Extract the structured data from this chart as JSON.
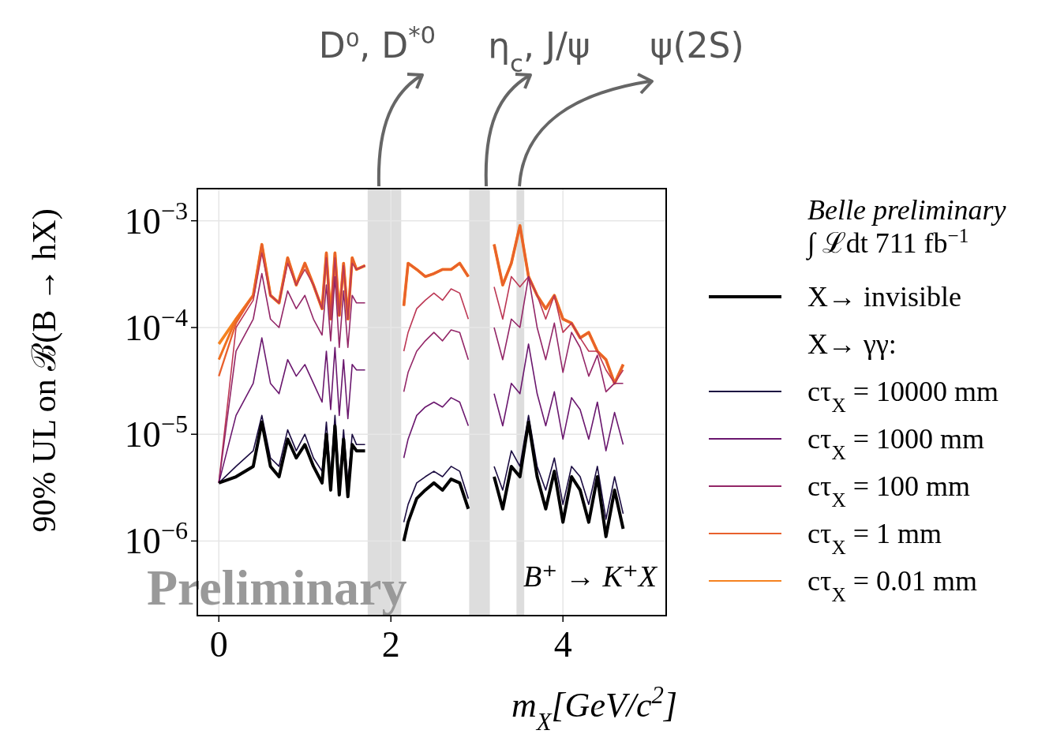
{
  "chart_data": {
    "type": "line",
    "xlabel": "m$_{X}$[GeV/c$^{2}$]",
    "ylabel": "90% UL on ℬ(B → hX)",
    "legend_title": "Belle preliminary",
    "legend": "right",
    "grid": true,
    "log": "y",
    "line_style": "solid",
    "marker": "none",
    "xlim": [
      -0.25,
      5.2
    ],
    "xticks": [
      0,
      2,
      4
    ],
    "ylim": [
      2e-07,
      0.002
    ],
    "yticks": [
      {
        "value": 1e-06,
        "label": "10$^{−6}$"
      },
      {
        "value": 1e-05,
        "label": "10$^{−5}$"
      },
      {
        "value": 0.0001,
        "label": "10$^{−4}$"
      },
      {
        "value": 0.001,
        "label": "10$^{−3}$"
      }
    ],
    "x": [
      0,
      0.2,
      0.4,
      0.5,
      0.6,
      0.7,
      0.8,
      0.9,
      1.0,
      1.1,
      1.2,
      1.25,
      1.3,
      1.35,
      1.4,
      1.45,
      1.5,
      1.55,
      1.6,
      1.7,
      1.9,
      2.15,
      2.2,
      2.3,
      2.4,
      2.5,
      2.6,
      2.7,
      2.8,
      2.9,
      3.05,
      3.2,
      3.3,
      3.4,
      3.5,
      3.6,
      3.7,
      3.8,
      3.9,
      4.0,
      4.1,
      4.2,
      4.3,
      4.4,
      4.5,
      4.6,
      4.7
    ],
    "bands": [
      {
        "axis": "x",
        "from": 1.73,
        "to": 2.12,
        "label": "D⁰, D$^{*0}$",
        "color": "#dddddd"
      },
      {
        "axis": "x",
        "from": 2.91,
        "to": 3.15,
        "label": "η$_{c}$, J/ψ",
        "color": "#dddddd"
      },
      {
        "axis": "x",
        "from": 3.46,
        "to": 3.55,
        "label": "ψ(2S)",
        "color": "#dddddd"
      }
    ],
    "annotations": [
      "∫ ℒdt 711 fb$^{−1}$",
      "X→ γγ:",
      "Preliminary",
      "B⁺ → K⁺X"
    ],
    "series": [
      {
        "name": "X→ invisible",
        "color": "#000000",
        "values": [
          3.5e-06,
          4e-06,
          5e-06,
          1.3e-05,
          5e-06,
          4e-06,
          9e-06,
          6e-06,
          8e-06,
          5e-06,
          3.5e-06,
          1e-05,
          3e-06,
          1.2e-05,
          2.7e-06,
          9e-06,
          2.6e-06,
          8e-06,
          7e-06,
          7e-06,
          null,
          1e-06,
          1.5e-06,
          2.5e-06,
          3e-06,
          3.5e-06,
          3e-06,
          3.8e-06,
          3.5e-06,
          2e-06,
          null,
          4e-06,
          2e-06,
          5e-06,
          4e-06,
          1.3e-05,
          4e-06,
          2e-06,
          4.5e-06,
          1.5e-06,
          4e-06,
          3e-06,
          1.5e-06,
          4e-06,
          1.1e-06,
          3e-06,
          1.3e-06
        ]
      },
      {
        "name": "cτ$_{X}$ = 10000 mm",
        "color": "#1b0c41",
        "values": [
          3.5e-06,
          5e-06,
          7e-06,
          1.5e-05,
          6e-06,
          5e-06,
          1.1e-05,
          7e-06,
          1e-05,
          6e-06,
          4.5e-06,
          1.3e-05,
          4e-06,
          1.5e-05,
          3.5e-06,
          1.1e-05,
          3.5e-06,
          1e-05,
          8e-06,
          8e-06,
          null,
          1.5e-06,
          2.2e-06,
          3.5e-06,
          4e-06,
          4.5e-06,
          4e-06,
          5e-06,
          4.5e-06,
          2.5e-06,
          null,
          5e-06,
          3e-06,
          7e-06,
          5e-06,
          1.5e-05,
          5e-06,
          3e-06,
          6e-06,
          2.2e-06,
          5e-06,
          4e-06,
          2.2e-06,
          5e-06,
          1.6e-06,
          4e-06,
          1.8e-06
        ]
      },
      {
        "name": "cτ$_{X}$ = 1000 mm",
        "color": "#6a176e",
        "values": [
          3.5e-06,
          1.5e-05,
          3e-05,
          8e-05,
          3e-05,
          2.4e-05,
          5e-05,
          3.5e-05,
          4.5e-05,
          3e-05,
          2e-05,
          6e-05,
          1.7e-05,
          6.5e-05,
          1.5e-05,
          5e-05,
          1.4e-05,
          4.5e-05,
          4e-05,
          4e-05,
          null,
          6e-06,
          9e-06,
          1.5e-05,
          1.8e-05,
          2e-05,
          1.8e-05,
          2.2e-05,
          2e-05,
          1.2e-05,
          null,
          2.4e-05,
          1.2e-05,
          3e-05,
          2.4e-05,
          7e-05,
          2.4e-05,
          1.2e-05,
          2.5e-05,
          9e-06,
          2.2e-05,
          1.7e-05,
          9e-06,
          2e-05,
          7e-06,
          1.6e-05,
          8e-06
        ]
      },
      {
        "name": "cτ$_{X}$ = 100 mm",
        "color": "#932667",
        "values": [
          3.5e-06,
          6e-05,
          0.00012,
          0.00032,
          0.00012,
          0.0001,
          0.00022,
          0.00015,
          0.0002,
          0.00012,
          8.5e-05,
          0.00025,
          7.5e-05,
          0.0003,
          6.5e-05,
          0.00022,
          6.5e-05,
          0.0002,
          0.00017,
          0.00017,
          null,
          2.5e-05,
          3.8e-05,
          6e-05,
          7.5e-05,
          9e-05,
          7.5e-05,
          9.5e-05,
          9e-05,
          5e-05,
          null,
          0.0001,
          5e-05,
          0.00012,
          0.0001,
          0.0003,
          0.0001,
          5e-05,
          0.00011,
          3.8e-05,
          9e-05,
          6.5e-05,
          3.5e-05,
          5.5e-05,
          2.5e-05,
          3e-05,
          3e-05
        ]
      },
      {
        "color": "#bc3754",
        "values": [
          3.5e-06,
          0.0001,
          0.00018,
          0.0005,
          0.0002,
          0.00017,
          0.0004,
          0.00025,
          0.00035,
          0.00025,
          0.00015,
          0.00045,
          0.00012,
          0.00045,
          0.00013,
          0.00038,
          0.00012,
          0.0004,
          0.00035,
          0.00038,
          null,
          6e-05,
          9e-05,
          0.00015,
          0.00018,
          0.00021,
          0.00018,
          0.00023,
          0.00021,
          0.00012,
          null,
          0.00024,
          0.00012,
          0.0003,
          0.00024,
          0.0003,
          0.0002,
          0.00012,
          0.0002,
          9e-05,
          0.00011,
          8e-05,
          6e-05,
          6e-05,
          4e-05,
          3e-05,
          4e-05
        ]
      },
      {
        "name": "cτ$_{X}$ = 1 mm",
        "color": "#e8602d",
        "values": [
          3.5e-05,
          0.00011,
          0.0002,
          0.0006,
          0.0002,
          0.00017,
          0.00045,
          0.00025,
          0.0004,
          0.00025,
          0.00015,
          0.0005,
          0.00012,
          0.0005,
          0.00013,
          0.0004,
          0.00012,
          0.00045,
          0.00035,
          0.00038,
          null,
          0.00016,
          0.0004,
          0.00035,
          0.0003,
          0.00032,
          0.00035,
          0.00035,
          0.0004,
          0.0003,
          null,
          0.0006,
          0.00025,
          0.0004,
          0.0009,
          0.0003,
          0.0002,
          0.00015,
          0.0002,
          0.00012,
          0.00011,
          8e-05,
          9e-05,
          6e-05,
          5e-05,
          3e-05,
          4.5e-05
        ]
      },
      {
        "color": "#f07020",
        "values": [
          5e-05,
          0.00012,
          0.0002,
          0.0006,
          0.0002,
          0.00017,
          0.00045,
          0.00025,
          0.0004,
          0.00025,
          0.00015,
          0.0005,
          0.00012,
          0.0005,
          0.00013,
          0.0004,
          0.00012,
          0.00045,
          0.00035,
          0.00038,
          null,
          0.00016,
          0.0004,
          0.00035,
          0.0003,
          0.00032,
          0.00035,
          0.00035,
          0.0004,
          0.0003,
          null,
          0.0006,
          0.00025,
          0.0004,
          0.0009,
          0.0003,
          0.0002,
          0.00015,
          0.0002,
          0.00012,
          0.00011,
          8e-05,
          9e-05,
          6e-05,
          5e-05,
          3e-05,
          4.5e-05
        ]
      },
      {
        "name": "cτ$_{X}$ = 0.01 mm",
        "color": "#f58220",
        "values": [
          7e-05,
          0.00012,
          0.0002,
          0.0006,
          0.0002,
          0.00017,
          0.00045,
          0.00025,
          0.0004,
          0.00025,
          0.00015,
          0.0005,
          0.00012,
          0.0005,
          0.00013,
          0.0004,
          0.00012,
          0.00045,
          0.00035,
          0.00038,
          null,
          0.00016,
          0.0004,
          0.00035,
          0.0003,
          0.00032,
          0.00035,
          0.00035,
          0.0004,
          0.0003,
          null,
          0.0006,
          0.00025,
          0.0004,
          0.0009,
          0.0003,
          0.0002,
          0.00015,
          0.0002,
          0.00012,
          0.00011,
          8e-05,
          9e-05,
          6e-05,
          5e-05,
          3e-05,
          4.5e-05
        ]
      }
    ]
  }
}
